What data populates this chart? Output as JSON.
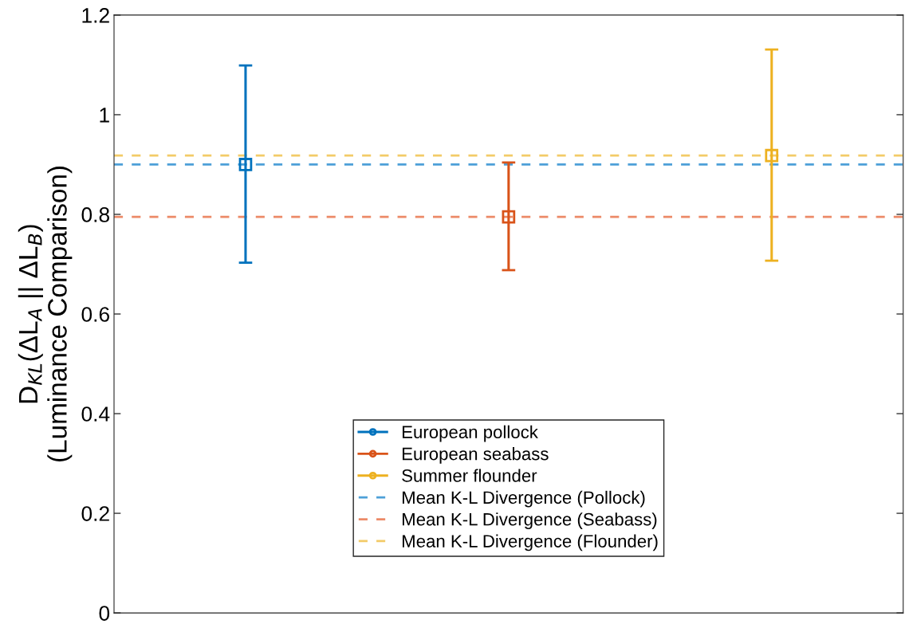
{
  "chart_data": {
    "type": "scatter",
    "ylabel": "D$_{KL}$(ΔL$_{A}$ || ΔL$_{B}$)\n(Luminance Comparison)",
    "categories": [
      null,
      null,
      null
    ],
    "series": [
      {
        "name": "European pollock",
        "color": "#0072bd",
        "values": [
          0.9,
          null,
          null
        ],
        "errors": [
          [
            0.703,
            1.099
          ],
          null,
          null
        ]
      },
      {
        "name": "European seabass",
        "color": "#d95319",
        "values": [
          null,
          0.795,
          null
        ],
        "errors": [
          null,
          [
            0.688,
            0.904
          ],
          null
        ]
      },
      {
        "name": "Summer flounder",
        "color": "#edb120",
        "values": [
          null,
          null,
          0.918
        ],
        "errors": [
          null,
          null,
          [
            0.707,
            1.131
          ]
        ]
      }
    ],
    "ref_lines": [
      {
        "axis": "y",
        "value": 0.9,
        "label": "Mean K-L Divergence (Pollock)",
        "color": "#4da0d8",
        "line_style": "dashed"
      },
      {
        "axis": "y",
        "value": 0.795,
        "label": "Mean K-L Divergence (Seabass)",
        "color": "#ec8a68",
        "line_style": "dashed"
      },
      {
        "axis": "y",
        "value": 0.918,
        "label": "Mean K-L Divergence (Flounder)",
        "color": "#f3cb68",
        "line_style": "dashed"
      }
    ],
    "ylim": [
      0,
      1.2
    ],
    "yticks": [
      0,
      0.2,
      0.4,
      0.6,
      0.8,
      1,
      1.2
    ],
    "marker": "square",
    "grid": false,
    "legend": "bottom",
    "tick_labels": "y"
  }
}
